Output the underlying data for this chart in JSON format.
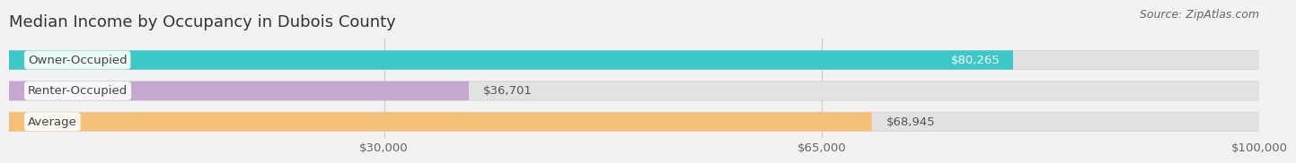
{
  "title": "Median Income by Occupancy in Dubois County",
  "source": "Source: ZipAtlas.com",
  "categories": [
    "Owner-Occupied",
    "Renter-Occupied",
    "Average"
  ],
  "values": [
    80265,
    36701,
    68945
  ],
  "bar_colors": [
    "#3cc8c8",
    "#c4a8d0",
    "#f5c07a"
  ],
  "bar_labels": [
    "$80,265",
    "$36,701",
    "$68,945"
  ],
  "label_inside": [
    true,
    false,
    false
  ],
  "xlim": [
    0,
    100000
  ],
  "xticks": [
    30000,
    65000,
    100000
  ],
  "xtick_labels": [
    "$30,000",
    "$65,000",
    "$100,000"
  ],
  "background_color": "#f2f2f2",
  "bar_background_color": "#e2e2e2",
  "title_fontsize": 13,
  "label_fontsize": 9.5,
  "value_fontsize": 9.5,
  "source_fontsize": 9
}
